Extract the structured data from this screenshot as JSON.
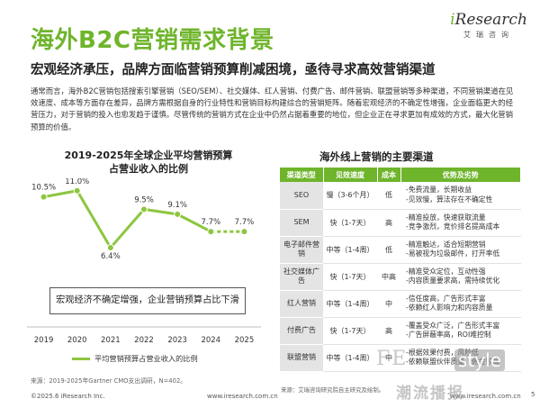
{
  "header": {
    "title": "海外B2C营销需求背景",
    "subtitle": "宏观经济承压，品牌方面临营销预算削减困境，亟待寻求高效营销渠道",
    "body": "通常而言，海外B2C营销包括搜索引擎营销（SEO/SEM）、社交媒体、红人营销、付费广告、邮件营销、联盟营销等多种渠道，不同营销渠道在见效速度、成本等方面存在差异，品牌方需根据自身的行业特性和营销目标构建综合的营销矩阵。随着宏观经济的不确定性增强，企业面临更大的经营压力，对于营销的投入也愈发趋于谨慎。尽管传统的营销方式在企业中仍然占据着重要的地位，但企业正在寻求更加有成效的方式，最大化营销预算的价值。"
  },
  "logo": {
    "brand_i": "i",
    "brand_rest": "Research",
    "sub": "艾瑞咨询"
  },
  "chart": {
    "title_line1": "2019-2025年全球企业平均营销预算",
    "title_line2": "占营业收入的比例",
    "annotation": "宏观经济不确定增强，企业营销预算占比下滑",
    "legend_label": "平均营销预算占营业收入的比例"
  },
  "chart_data": {
    "type": "line",
    "categories": [
      "2019",
      "2020",
      "2021",
      "2022",
      "2023",
      "2024",
      "2025"
    ],
    "series": [
      {
        "name": "平均营销预算占营业收入的比例",
        "values": [
          10.5,
          11.0,
          6.4,
          9.5,
          9.1,
          7.7,
          7.7
        ],
        "labels": [
          "10.5%",
          "11.0%",
          "6.4%",
          "9.5%",
          "9.1%",
          "7.7%",
          "7.7%"
        ],
        "dashed_from_index": 5
      }
    ],
    "ylim": [
      0,
      12
    ],
    "line_color": "#8dc63f",
    "marker_color": "#8dc63f"
  },
  "table": {
    "title": "海外线上营销的主要渠道",
    "headers": [
      "渠道类型",
      "见效速度",
      "成本",
      "优势及劣势"
    ],
    "rows": [
      {
        "type": "SEO",
        "speed": "慢（3-6个月）",
        "cost": "低",
        "pros": [
          "-免费流量，长期收益",
          "-见效慢，算法存在不确定性"
        ]
      },
      {
        "type": "SEM",
        "speed": "快（1-7天）",
        "cost": "高",
        "pros": [
          "-精准投放，快速获取流量",
          "-竞争激烈，竞价排名提高成本"
        ]
      },
      {
        "type": "电子邮件营销",
        "speed": "中等（1-4周）",
        "cost": "低",
        "pros": [
          "-精准触达，适合短期营销",
          "-易被视为垃圾邮件，打开率低"
        ]
      },
      {
        "type": "社交媒体广告",
        "speed": "快（1-7天）",
        "cost": "中高",
        "pros": [
          "-精准受众定位，互动性强",
          "-内容质量要求高，需持续优化"
        ]
      },
      {
        "type": "红人营销",
        "speed": "中等（1-4周）",
        "cost": "中",
        "pros": [
          "-信任度高，广告形式丰富",
          "-依赖红人影响力和内容质量"
        ]
      },
      {
        "type": "付费广告",
        "speed": "快（1-7天）",
        "cost": "高",
        "pros": [
          "-覆盖受众广泛，广告形式丰富",
          "-广告屏蔽率高，ROI难控制"
        ]
      },
      {
        "type": "联盟营销",
        "speed": "中等（1-4周）",
        "cost": "中",
        "pros": [
          "-根据效果付费，风险低",
          "-依赖联盟伙伴质量，佣金较高"
        ]
      }
    ]
  },
  "footer": {
    "source_left": "来源：2019-2025年Gartner CMO支出调研，N=402。",
    "source_right": "来源：艾瑞咨询研究院自主研究及绘制。",
    "copyright_left": "©2025.6 iResearch Inc.",
    "url": "www.iresearch.com.cn",
    "copyright_right": "©2025.6 iResearch Inc.",
    "url_right": "www.iresearch.com.cn",
    "page": "5"
  },
  "watermark": {
    "letters": "FE",
    "style": "style",
    "cn": "潮流播报"
  },
  "colors": {
    "accent": "#6fb52c",
    "line": "#8dc63f",
    "table_type_bg": "#e4e4e4"
  }
}
